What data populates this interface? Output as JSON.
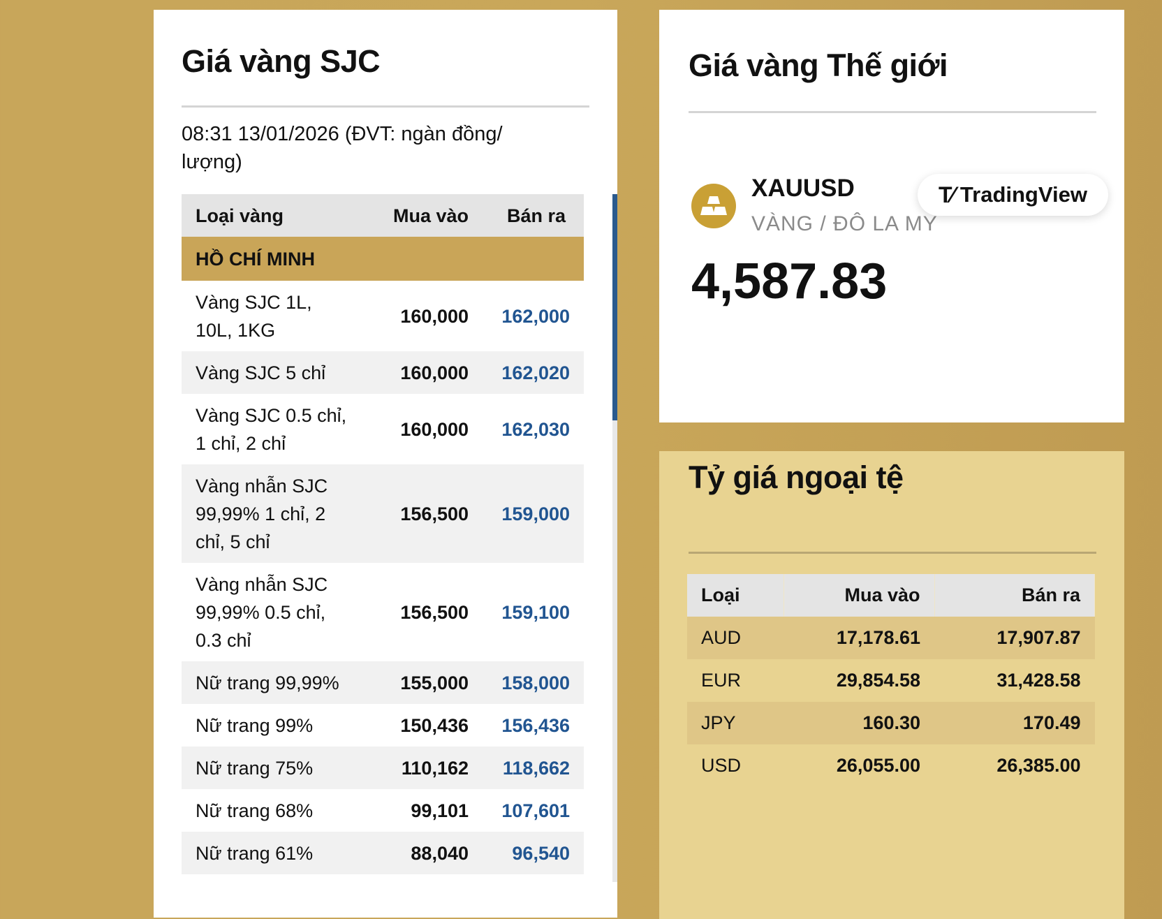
{
  "sjc": {
    "title": "Giá vàng SJC",
    "date": "08:31 13/01/2026 (ĐVT: ngàn đồng/ lượng)",
    "headers": {
      "type": "Loại vàng",
      "buy": "Mua vào",
      "sell": "Bán ra"
    },
    "region": "HỒ CHÍ MINH",
    "rows": [
      {
        "name": "Vàng SJC 1L, 10L, 1KG",
        "buy": "160,000",
        "sell": "162,000"
      },
      {
        "name": "Vàng SJC 5 chỉ",
        "buy": "160,000",
        "sell": "162,020"
      },
      {
        "name": "Vàng SJC 0.5 chỉ, 1 chỉ, 2 chỉ",
        "buy": "160,000",
        "sell": "162,030"
      },
      {
        "name": "Vàng nhẫn SJC 99,99% 1 chỉ, 2 chỉ, 5 chỉ",
        "buy": "156,500",
        "sell": "159,000"
      },
      {
        "name": "Vàng nhẫn SJC 99,99% 0.5 chỉ, 0.3 chỉ",
        "buy": "156,500",
        "sell": "159,100"
      },
      {
        "name": "Nữ trang 99,99%",
        "buy": "155,000",
        "sell": "158,000"
      },
      {
        "name": "Nữ trang 99%",
        "buy": "150,436",
        "sell": "156,436"
      },
      {
        "name": "Nữ trang 75%",
        "buy": "110,162",
        "sell": "118,662"
      },
      {
        "name": "Nữ trang 68%",
        "buy": "99,101",
        "sell": "107,601"
      },
      {
        "name": "Nữ trang 61%",
        "buy": "88,040",
        "sell": "96,540"
      }
    ]
  },
  "world": {
    "title": "Giá vàng Thế giới",
    "symbol": "XAUUSD",
    "subtitle": "VÀNG / ĐÔ LA MY",
    "price": "4,587.83",
    "widget_brand": "TradingView",
    "icon": "gold-bars-icon"
  },
  "fx": {
    "title": "Tỷ giá ngoại tệ",
    "headers": {
      "type": "Loại",
      "buy": "Mua vào",
      "sell": "Bán ra"
    },
    "rows": [
      {
        "cur": "AUD",
        "buy": "17,178.61",
        "sell": "17,907.87"
      },
      {
        "cur": "EUR",
        "buy": "29,854.58",
        "sell": "31,428.58"
      },
      {
        "cur": "JPY",
        "buy": "160.30",
        "sell": "170.49"
      },
      {
        "cur": "USD",
        "buy": "26,055.00",
        "sell": "26,385.00"
      }
    ]
  },
  "colors": {
    "background": "#c9a558",
    "accent_blue": "#215591",
    "fx_panel": "#e8d391"
  }
}
